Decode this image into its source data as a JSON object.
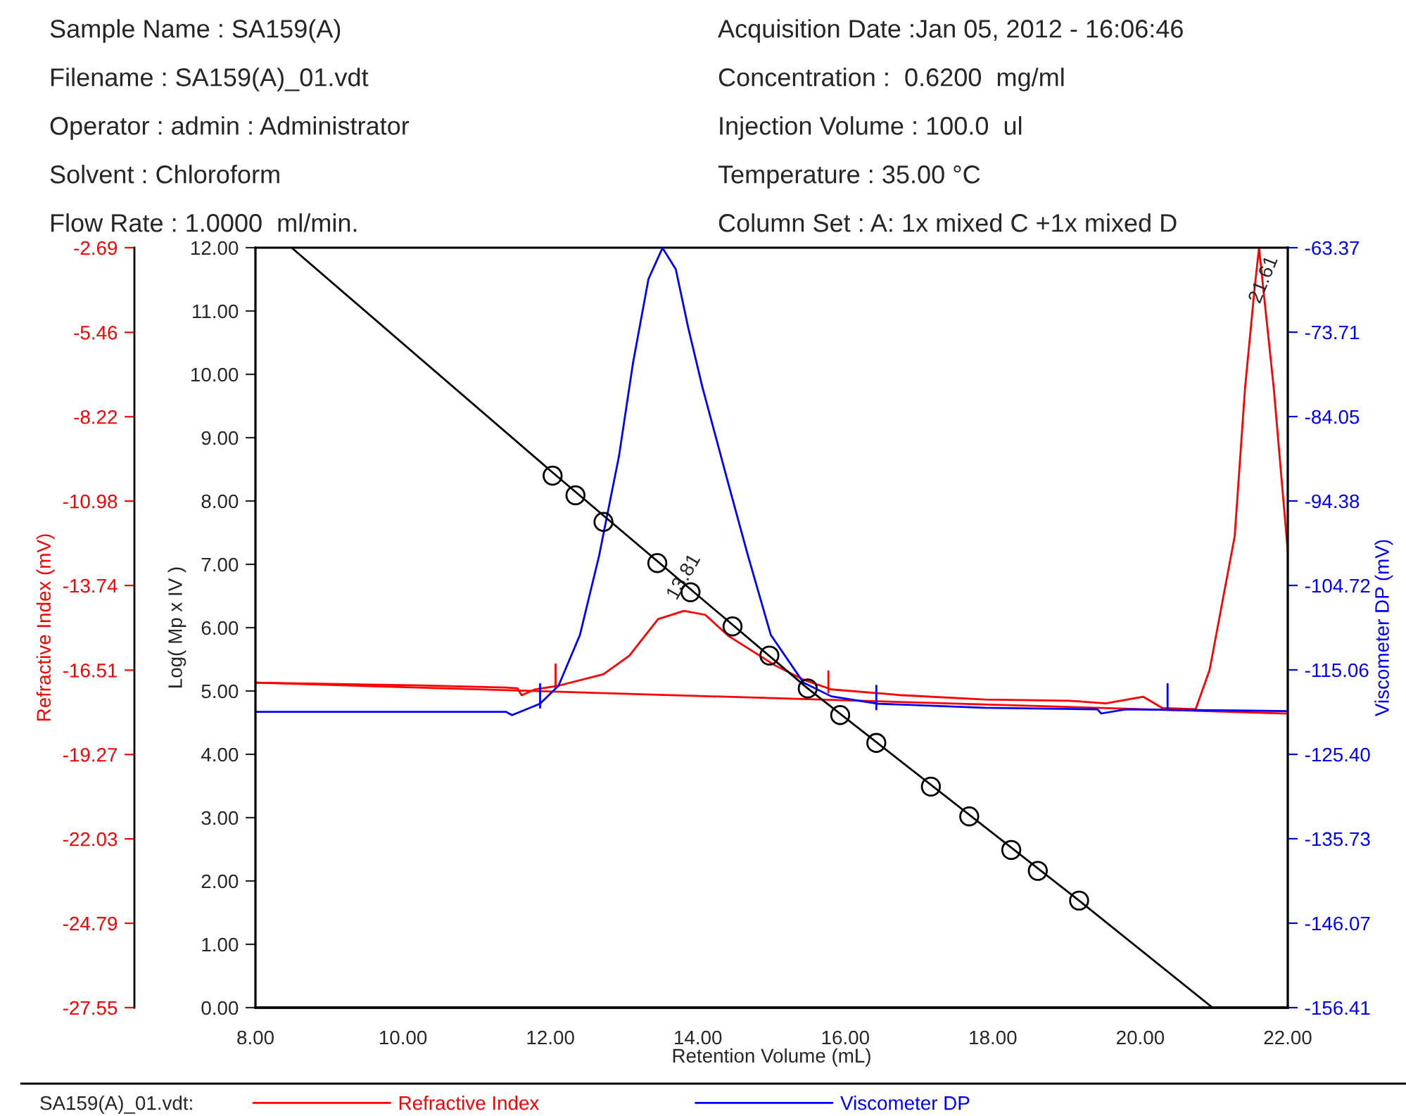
{
  "chart_data": {
    "type": "line",
    "annotations": [
      "Sample Name : SA159(A)",
      "Filename : SA159(A)_01.vdt",
      "Operator : admin : Administrator",
      "Solvent : Chloroform",
      "Flow Rate : 1.0000  ml/min.",
      "Acquisition Date :Jan 05, 2012 - 16:06:46",
      "Concentration :  0.6200  mg/ml",
      "Injection Volume : 100.0  ul",
      "Temperature : 35.00 °C",
      "Column Set : A: 1x mixed C +1x mixed D",
      {
        "text": "13.81",
        "x": 13.81,
        "y": -14.57
      },
      {
        "text": "21.61",
        "x": 21.61,
        "y": -2.7
      }
    ],
    "xlabel": "Retention Volume (mL)",
    "ylabel": "Refractive Index (mV)",
    "y2label": "Viscometer DP (mV)",
    "y3label": "Log( Mp x IV )",
    "legend_title": "SA159(A)_01.vdt:",
    "legend": "bottom",
    "grid": false,
    "xlim": [
      8,
      22
    ],
    "xticks": [
      {
        "value": 8,
        "label": "8.00"
      },
      {
        "value": 10,
        "label": "10.00"
      },
      {
        "value": 12,
        "label": "12.00"
      },
      {
        "value": 14,
        "label": "14.00"
      },
      {
        "value": 16,
        "label": "16.00"
      },
      {
        "value": 18,
        "label": "18.00"
      },
      {
        "value": 20,
        "label": "20.00"
      },
      {
        "value": 22,
        "label": "22.00"
      }
    ],
    "ylim": [
      -27.55,
      -2.69
    ],
    "yticks": [
      -2.69,
      -5.46,
      -8.22,
      -10.98,
      -13.74,
      -16.51,
      -19.27,
      -22.03,
      -24.79,
      -27.55
    ],
    "y2lim": [
      -156.41,
      -63.37
    ],
    "y2ticks": [
      -63.37,
      -73.71,
      -84.05,
      -94.38,
      -104.72,
      -115.06,
      {
        "value": -125.4,
        "label": "-125.40"
      },
      -135.73,
      -146.07,
      -156.41
    ],
    "y3lim": [
      0,
      12
    ],
    "y3ticks": [
      {
        "value": 0,
        "label": "0.00"
      },
      {
        "value": 1,
        "label": "1.00"
      },
      {
        "value": 2,
        "label": "2.00"
      },
      {
        "value": 3,
        "label": "3.00"
      },
      {
        "value": 4,
        "label": "4.00"
      },
      {
        "value": 5,
        "label": "5.00"
      },
      {
        "value": 6,
        "label": "6.00"
      },
      {
        "value": 7,
        "label": "7.00"
      },
      {
        "value": 8,
        "label": "8.00"
      },
      {
        "value": 9,
        "label": "9.00"
      },
      {
        "value": 10,
        "label": "10.00"
      },
      {
        "value": 11,
        "label": "11.00"
      },
      {
        "value": 12,
        "label": "12.00"
      }
    ],
    "series": [
      {
        "name": "Refractive Index",
        "color": "#ff0000",
        "x": [
          8.0,
          10.26,
          11.4,
          11.55,
          11.61,
          11.79,
          12.09,
          12.72,
          13.07,
          13.46,
          13.81,
          14.1,
          14.42,
          15.05,
          15.43,
          15.81,
          16.77,
          17.89,
          19.03,
          19.53,
          20.04,
          20.3,
          20.75,
          20.94,
          21.28,
          21.42,
          21.55,
          21.61,
          21.81,
          22.0
        ],
        "values": [
          -16.92,
          -17.01,
          -17.08,
          -17.1,
          -17.33,
          -17.14,
          -17.03,
          -16.64,
          -16.04,
          -14.84,
          -14.57,
          -14.7,
          -15.4,
          -16.36,
          -16.82,
          -17.14,
          -17.33,
          -17.47,
          -17.51,
          -17.6,
          -17.38,
          -17.75,
          -17.79,
          -16.5,
          -12.13,
          -7.29,
          -4.02,
          -2.7,
          -7.29,
          -12.63
        ]
      },
      {
        "name": "Viscometer DP",
        "color": "#0000ff",
        "axis": "y2",
        "x": [
          8.0,
          11.4,
          11.48,
          11.86,
          12.11,
          12.4,
          12.66,
          12.93,
          13.12,
          13.33,
          13.52,
          13.7,
          13.87,
          14.06,
          14.42,
          14.68,
          14.99,
          15.43,
          15.81,
          16.44,
          17.89,
          19.42,
          19.47,
          19.8,
          22.0
        ],
        "values": [
          -120.2,
          -120.2,
          -120.6,
          -119.2,
          -117.0,
          -110.8,
          -101.1,
          -88.9,
          -77.5,
          -67.2,
          -63.4,
          -66.0,
          -73.2,
          -80.4,
          -92.5,
          -101.1,
          -110.8,
          -116.6,
          -118.3,
          -119.2,
          -119.7,
          -119.9,
          -120.4,
          -119.9,
          -120.1
        ]
      },
      {
        "color": "#ff0000",
        "x": [
          8.0,
          22.0
        ],
        "values": [
          -16.92,
          -17.93
        ]
      },
      {
        "color": "#000000",
        "axis": "y3",
        "x": [
          8.49,
          12.03,
          15.49,
          19.17,
          20.98
        ],
        "values": [
          12,
          8.45,
          5.04,
          1.69,
          0
        ]
      },
      {
        "color": "#000000",
        "type": "scatter",
        "marker": "circle",
        "axis": "y3",
        "x": [
          12.03,
          12.34,
          12.72,
          13.45,
          13.9,
          14.47,
          14.97,
          15.49,
          15.93,
          16.42,
          17.16,
          17.68,
          18.25,
          18.61,
          19.17
        ],
        "values": [
          8.4,
          8.09,
          7.67,
          7.02,
          6.56,
          6.02,
          5.56,
          5.04,
          4.62,
          4.18,
          3.49,
          3.02,
          2.49,
          2.16,
          1.69
        ]
      },
      {
        "color": "#ff0000",
        "x": [
          12.07,
          12.07
        ],
        "values": [
          -16.32,
          -17.1
        ]
      },
      {
        "color": "#ff0000",
        "x": [
          15.77,
          15.77
        ],
        "values": [
          -16.55,
          -17.24
        ]
      },
      {
        "color": "#0000ff",
        "axis": "y2",
        "x": [
          11.86,
          11.86
        ],
        "values": [
          -116.8,
          -119.7
        ]
      },
      {
        "color": "#0000ff",
        "axis": "y2",
        "x": [
          16.42,
          16.42
        ],
        "values": [
          -117.0,
          -119.9
        ]
      },
      {
        "color": "#0000ff",
        "axis": "y2",
        "x": [
          20.37,
          20.37
        ],
        "values": [
          -116.8,
          -119.9
        ]
      }
    ]
  }
}
